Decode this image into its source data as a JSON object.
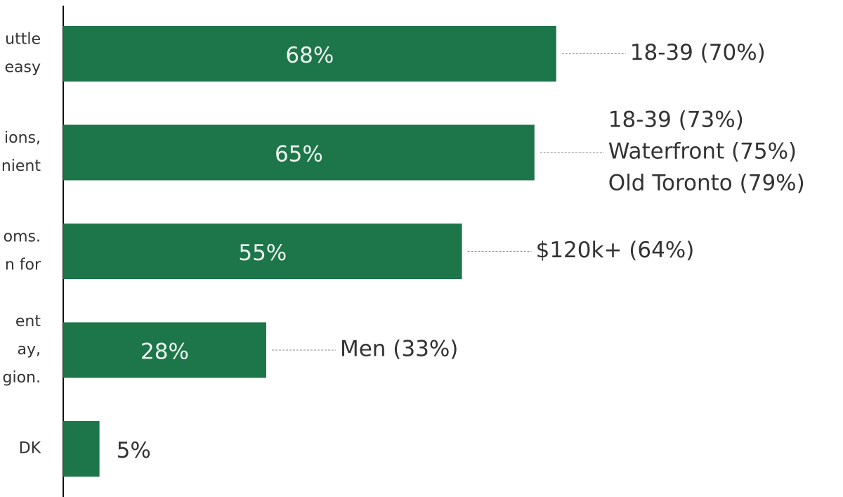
{
  "chart_data": {
    "type": "bar",
    "orientation": "horizontal",
    "categories": [
      [
        "uttle",
        "easy"
      ],
      [
        "ions,",
        "nient"
      ],
      [
        "oms.",
        "n for"
      ],
      [
        "ent",
        "ay,",
        "gion."
      ],
      [
        "DK"
      ]
    ],
    "values": [
      68,
      65,
      55,
      28,
      5
    ],
    "value_labels": [
      "68%",
      "65%",
      "55%",
      "28%",
      "5%"
    ],
    "color": "#1c7649",
    "annotations": [
      [
        "18-39 (70%)"
      ],
      [
        "18-39 (73%)",
        "Waterfront (75%)",
        "Old Toronto (79%)"
      ],
      [
        "$120k+ (64%)"
      ],
      [
        "Men (33%)"
      ],
      []
    ]
  }
}
